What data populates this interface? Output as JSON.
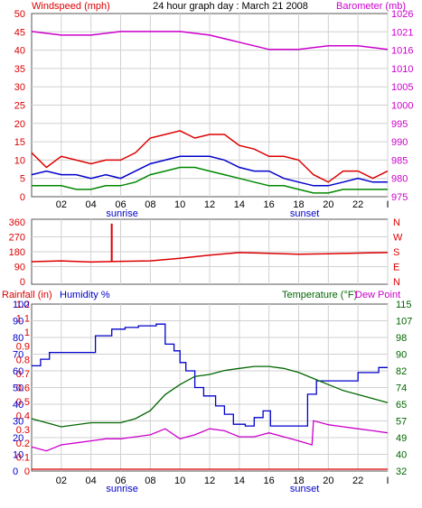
{
  "chart_data": [
    {
      "type": "line",
      "title": "24 hour graph day : March 21 2008",
      "left_axis_label": "Windspeed (mph)",
      "right_axis_label": "Barometer (mb)",
      "x_ticks": [
        "02",
        "04",
        "06",
        "08",
        "10",
        "12",
        "14",
        "16",
        "18",
        "20",
        "22",
        "I"
      ],
      "x_range": [
        0,
        24
      ],
      "left_ticks": [
        "0",
        "5",
        "10",
        "15",
        "20",
        "25",
        "30",
        "35",
        "40",
        "45",
        "50"
      ],
      "ylim_left": [
        0,
        50
      ],
      "right_ticks": [
        "975",
        "980",
        "985",
        "990",
        "995",
        "1000",
        "1005",
        "1010",
        "1016",
        "1021",
        "1026"
      ],
      "ylim_right": [
        975,
        1026
      ],
      "sunrise_label": "sunrise",
      "sunset_label": "sunset",
      "sunrise_x": 6.1,
      "sunset_x": 18.4,
      "grid": true,
      "series": [
        {
          "axis": "right",
          "color": "#cc00cc",
          "x": [
            0,
            2,
            4,
            6,
            8,
            10,
            12,
            14,
            16,
            18,
            20,
            22,
            24
          ],
          "values": [
            1021,
            1020,
            1020,
            1021,
            1021,
            1021,
            1020,
            1018,
            1016,
            1016,
            1017,
            1017,
            1016
          ]
        },
        {
          "axis": "left",
          "color": "#dd0000",
          "x": [
            0,
            1,
            2,
            3,
            4,
            5,
            6,
            7,
            8,
            9,
            10,
            11,
            12,
            13,
            14,
            15,
            16,
            17,
            18,
            19,
            20,
            21,
            22,
            23,
            24
          ],
          "values": [
            12,
            8,
            11,
            10,
            9,
            10,
            10,
            12,
            16,
            17,
            18,
            16,
            17,
            17,
            14,
            13,
            11,
            11,
            10,
            6,
            4,
            7,
            7,
            5,
            7
          ]
        },
        {
          "axis": "left",
          "color": "#0000cc",
          "x": [
            0,
            1,
            2,
            3,
            4,
            5,
            6,
            7,
            8,
            9,
            10,
            11,
            12,
            13,
            14,
            15,
            16,
            17,
            18,
            19,
            20,
            21,
            22,
            23,
            24
          ],
          "values": [
            6,
            7,
            6,
            6,
            5,
            6,
            5,
            7,
            9,
            10,
            11,
            11,
            11,
            10,
            8,
            7,
            7,
            5,
            4,
            3,
            3,
            4,
            5,
            4,
            4
          ]
        },
        {
          "axis": "left",
          "color": "#008800",
          "x": [
            0,
            1,
            2,
            3,
            4,
            5,
            6,
            7,
            8,
            9,
            10,
            11,
            12,
            13,
            14,
            15,
            16,
            17,
            18,
            19,
            20,
            21,
            22,
            23,
            24
          ],
          "values": [
            3,
            3,
            3,
            2,
            2,
            3,
            3,
            4,
            6,
            7,
            8,
            8,
            7,
            6,
            5,
            4,
            3,
            3,
            2,
            1,
            1,
            2,
            2,
            2,
            2
          ]
        }
      ]
    },
    {
      "type": "line",
      "left_ticks": [
        "360",
        "270",
        "180",
        "90",
        "0"
      ],
      "ylim": [
        0,
        360
      ],
      "right_labels": [
        "N",
        "W",
        "S",
        "E",
        "N"
      ],
      "grid": true,
      "series": [
        {
          "color": "#dd0000",
          "x": [
            0,
            2,
            4,
            6,
            8,
            10,
            12,
            14,
            16,
            18,
            20,
            22,
            24
          ],
          "values": [
            120,
            125,
            118,
            122,
            125,
            140,
            160,
            175,
            170,
            165,
            168,
            172,
            175
          ],
          "spike": {
            "x": 5.4,
            "value": 350
          }
        }
      ]
    },
    {
      "type": "line",
      "rain_axis_label": "Rainfall (in)",
      "humidity_axis_label": "Humidity %",
      "temp_axis_label": "Temperature (°F)",
      "dew_axis_label": "Dew Point",
      "rain_ticks": [
        "0",
        "0.1",
        "0.2",
        "0.3",
        "0.4",
        "0.5",
        "0.6",
        "0.7",
        "0.8",
        "0.9",
        "1",
        "1.1",
        "1.2"
      ],
      "humidity_ticks": [
        "0",
        "10",
        "20",
        "30",
        "40",
        "50",
        "60",
        "70",
        "80",
        "90",
        "100"
      ],
      "temp_ticks": [
        "32",
        "40",
        "49",
        "57",
        "65",
        "74",
        "82",
        "90",
        "98",
        "107",
        "115"
      ],
      "ylim_humidity": [
        0,
        100
      ],
      "ylim_temp": [
        32,
        115
      ],
      "x_ticks": [
        "02",
        "04",
        "06",
        "08",
        "10",
        "12",
        "14",
        "16",
        "18",
        "20",
        "22",
        "I"
      ],
      "x_range": [
        0,
        24
      ],
      "sunrise_label": "sunrise",
      "sunset_label": "sunset",
      "sunrise_x": 6.1,
      "sunset_x": 18.4,
      "grid": true,
      "series": [
        {
          "axis": "humidity",
          "color": "#0000cc",
          "step": true,
          "x": [
            0,
            0.6,
            1.2,
            2.8,
            4.3,
            5.4,
            6.3,
            7.2,
            8.4,
            9.0,
            9.6,
            10.0,
            10.4,
            11.0,
            11.6,
            12.4,
            13.0,
            13.6,
            14.4,
            15.0,
            15.6,
            16.1,
            18.2,
            18.6,
            19.2,
            22.0,
            23.4,
            24
          ],
          "values": [
            63,
            67,
            71,
            71,
            81,
            85,
            86,
            87,
            88,
            76,
            72,
            65,
            60,
            50,
            45,
            39,
            34,
            28,
            27,
            32,
            36,
            27,
            27,
            46,
            54,
            59,
            62,
            62
          ]
        },
        {
          "axis": "temp",
          "color": "#006600",
          "x": [
            0,
            2,
            4,
            6,
            7,
            8,
            9,
            10,
            11,
            12,
            13,
            14,
            15,
            16,
            17,
            18,
            19,
            20,
            21,
            22,
            23,
            24
          ],
          "values": [
            58,
            54,
            56,
            56,
            58,
            62,
            70,
            75,
            79,
            80,
            82,
            83,
            84,
            84,
            83,
            81,
            78,
            75,
            72,
            70,
            68,
            66
          ]
        },
        {
          "axis": "temp",
          "color": "#cc00cc",
          "x": [
            0,
            1,
            2,
            3,
            4,
            5,
            6,
            7,
            8,
            9,
            10,
            11,
            12,
            13,
            14,
            15,
            16,
            17,
            18,
            18.9,
            19,
            20,
            21,
            22,
            23,
            24
          ],
          "values": [
            44,
            42,
            45,
            46,
            47,
            48,
            48,
            49,
            50,
            53,
            48,
            50,
            53,
            52,
            49,
            49,
            51,
            49,
            47,
            45,
            57,
            55,
            54,
            53,
            52,
            51
          ]
        },
        {
          "axis": "rain",
          "color": "#dd0000",
          "x": [
            0,
            24
          ],
          "values": [
            0,
            0
          ]
        }
      ]
    }
  ]
}
